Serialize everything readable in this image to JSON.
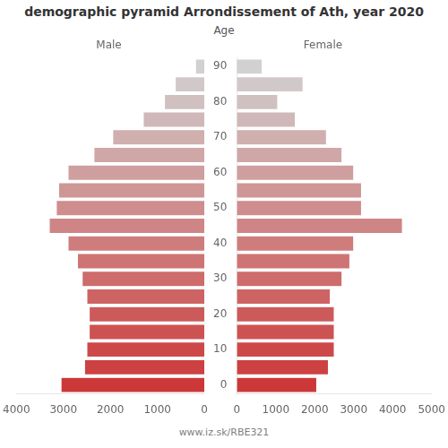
{
  "chart_data": [
    {
      "type": "bar",
      "orientation": "horizontal",
      "title": "demographic pyramid Arrondissement of Ath, year 2020",
      "xlabel": "Male",
      "annotation": "www.iz.sk/RBE321",
      "categories": [
        0,
        null,
        10,
        null,
        20,
        null,
        30,
        null,
        40,
        null,
        50,
        null,
        60,
        null,
        70,
        null,
        80,
        null,
        90
      ],
      "values": [
        3050,
        2550,
        2500,
        2450,
        2450,
        2500,
        2600,
        2700,
        2900,
        3300,
        3150,
        3100,
        2900,
        2350,
        1950,
        1300,
        850,
        620,
        190
      ],
      "colors": [
        "#cc3838",
        "#cc4141",
        "#cd4949",
        "#cd5252",
        "#cd5a5a",
        "#cd6363",
        "#ce6b6b",
        "#ce7474",
        "#ce7c7c",
        "#cf8585",
        "#cf8d8d",
        "#cf9696",
        "#cf9e9e",
        "#d0a7a7",
        "#d0afaf",
        "#d0b8b8",
        "#d1c0c0",
        "#d1c9c9",
        "#d1d1d1"
      ],
      "xlim": [
        4000,
        0
      ],
      "xticks": [
        4000,
        3000,
        2000,
        1000,
        0
      ],
      "tick_labels": "x",
      "grid": false
    },
    {
      "type": "bar",
      "orientation": "horizontal",
      "xlabel": "Female",
      "ylabel": "Age",
      "categories": [
        0,
        null,
        10,
        null,
        20,
        null,
        30,
        null,
        40,
        null,
        50,
        null,
        60,
        null,
        70,
        null,
        80,
        null,
        90
      ],
      "values": [
        2050,
        2350,
        2500,
        2500,
        2500,
        2400,
        2700,
        2900,
        3000,
        4250,
        3200,
        3200,
        3000,
        2700,
        2300,
        1500,
        1050,
        1700,
        650
      ],
      "colors": [
        "#cc3838",
        "#cc4141",
        "#cd4949",
        "#cd5252",
        "#cd5a5a",
        "#cd6363",
        "#ce6b6b",
        "#ce7474",
        "#ce7c7c",
        "#cf8585",
        "#cf8d8d",
        "#cf9696",
        "#cf9e9e",
        "#d0a7a7",
        "#d0afaf",
        "#d0b8b8",
        "#d1c0c0",
        "#d1c9c9",
        "#d1d1d1"
      ],
      "xlim": [
        0,
        5000
      ],
      "xticks": [
        0,
        1000,
        2000,
        3000,
        4000,
        5000
      ],
      "grid": false
    }
  ]
}
